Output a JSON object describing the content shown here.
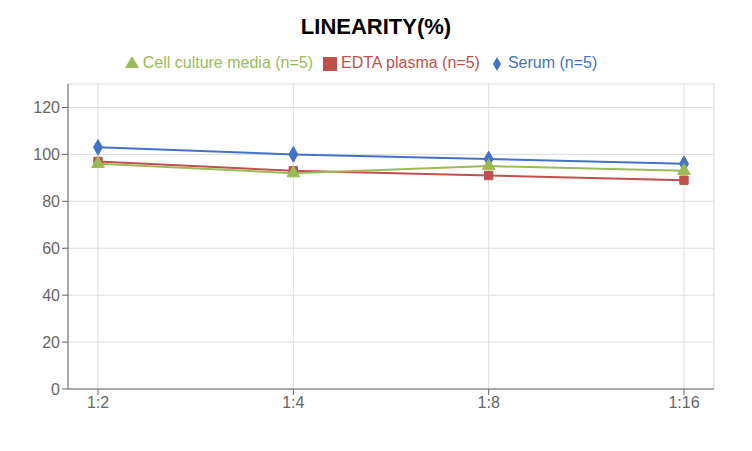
{
  "chart_data": {
    "type": "line",
    "title": "LINEARITY(%)",
    "categories": [
      "1:2",
      "1:4",
      "1:8",
      "1:16"
    ],
    "series": [
      {
        "name": "Serum (n=5)",
        "color": "#4472C4",
        "marker": "diamond",
        "values": [
          103,
          100,
          98,
          96
        ]
      },
      {
        "name": "EDTA plasma (n=5)",
        "color": "#C0504D",
        "marker": "square",
        "values": [
          97,
          93,
          91,
          89
        ]
      },
      {
        "name": "Cell culture media (n=5)",
        "color": "#9BBB59",
        "marker": "triangle",
        "values": [
          96,
          92,
          95,
          93
        ]
      }
    ],
    "ylim": [
      0,
      130
    ],
    "yticks": [
      0,
      20,
      40,
      60,
      80,
      100,
      120
    ],
    "grid": true,
    "legend": "top"
  }
}
